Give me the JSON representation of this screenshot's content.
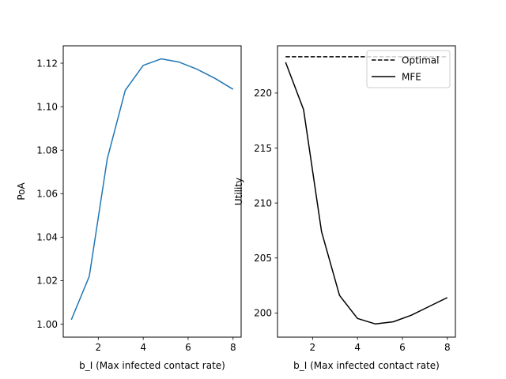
{
  "chart_data": [
    {
      "type": "line",
      "title": "",
      "xlabel": "b_I (Max infected contact rate)",
      "ylabel": "PoA",
      "xlim": [
        0.44,
        8.36
      ],
      "ylim": [
        0.994,
        1.128
      ],
      "xticks": [
        2,
        4,
        6,
        8
      ],
      "xtick_labels": [
        "2",
        "4",
        "6",
        "8"
      ],
      "yticks": [
        1.0,
        1.02,
        1.04,
        1.06,
        1.08,
        1.1,
        1.12
      ],
      "ytick_labels": [
        "1.00",
        "1.02",
        "1.04",
        "1.06",
        "1.08",
        "1.10",
        "1.12"
      ],
      "grid": false,
      "series": [
        {
          "color": "#1f77b4",
          "linestyle": "solid",
          "x": [
            0.8,
            1.6,
            2.4,
            3.2,
            4.0,
            4.8,
            5.6,
            6.4,
            7.2,
            8.0
          ],
          "values": [
            1.002,
            1.022,
            1.076,
            1.1075,
            1.119,
            1.122,
            1.1205,
            1.1172,
            1.113,
            1.108
          ]
        }
      ]
    },
    {
      "type": "line",
      "title": "",
      "xlabel": "b_I (Max infected contact rate)",
      "ylabel": "Utility",
      "xlim": [
        0.44,
        8.36
      ],
      "ylim": [
        197.8,
        224.3
      ],
      "xticks": [
        2,
        4,
        6,
        8
      ],
      "xtick_labels": [
        "2",
        "4",
        "6",
        "8"
      ],
      "yticks": [
        200,
        205,
        210,
        215,
        220
      ],
      "ytick_labels": [
        "200",
        "205",
        "210",
        "215",
        "220"
      ],
      "grid": false,
      "legend": "top-right",
      "series": [
        {
          "name": "Optimal",
          "color": "#000000",
          "linestyle": "dashed",
          "x": [
            0.8,
            1.6,
            2.4,
            3.2,
            4.0,
            4.8,
            5.6,
            6.4,
            7.2,
            8.0
          ],
          "values": [
            223.3,
            223.3,
            223.3,
            223.3,
            223.3,
            223.3,
            223.3,
            223.3,
            223.3,
            223.3
          ]
        },
        {
          "name": "MFE",
          "color": "#000000",
          "linestyle": "solid",
          "x": [
            0.8,
            1.6,
            2.4,
            3.2,
            4.0,
            4.8,
            5.6,
            6.4,
            7.2,
            8.0
          ],
          "values": [
            222.8,
            218.5,
            207.4,
            201.6,
            199.5,
            199.0,
            199.2,
            199.8,
            200.6,
            201.4
          ]
        }
      ]
    }
  ]
}
